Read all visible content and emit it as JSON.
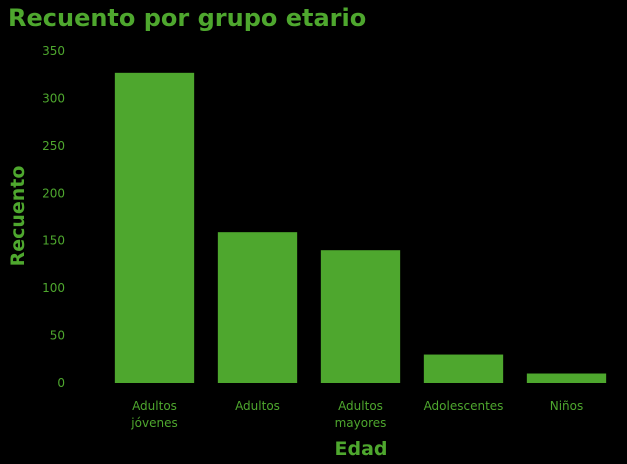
{
  "chart_data": {
    "type": "bar",
    "title": "Recuento por grupo etario",
    "xlabel": "Edad",
    "ylabel": "Recuento",
    "categories": [
      [
        "Adultos",
        "jóvenes"
      ],
      [
        "Adultos"
      ],
      [
        "Adultos",
        "mayores"
      ],
      [
        "Adolescentes"
      ],
      [
        "Niños"
      ]
    ],
    "values": [
      327,
      159,
      140,
      30,
      10
    ],
    "ylim": [
      0,
      350
    ],
    "yticks": [
      0,
      50,
      100,
      150,
      200,
      250,
      300,
      350
    ],
    "grid": false,
    "legend": "none",
    "colors": {
      "bar": "#4ea72e",
      "text": "#4ea72e",
      "background": "#000000"
    }
  }
}
